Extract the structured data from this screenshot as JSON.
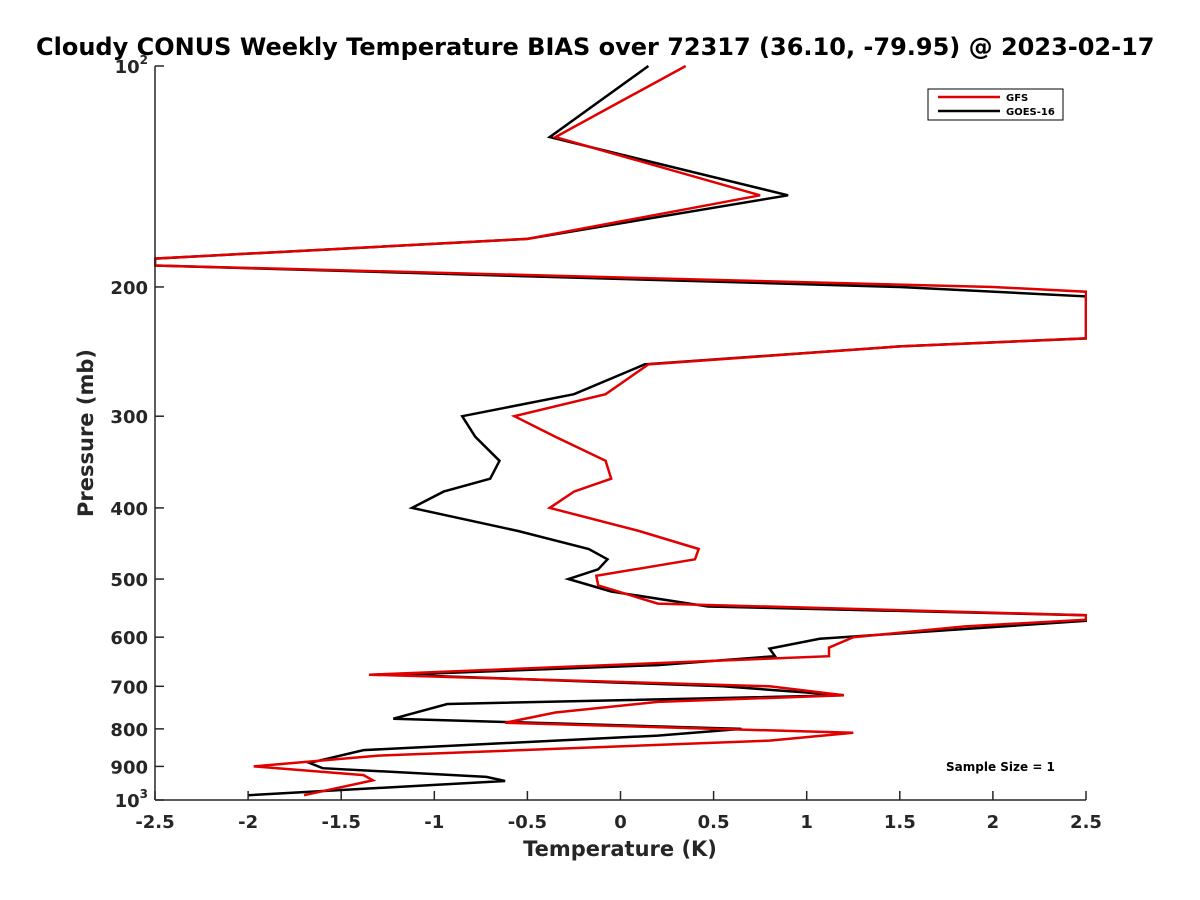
{
  "chart_data": {
    "type": "line",
    "title": "Cloudy CONUS Weekly Temperature BIAS over 72317 (36.10, -79.95) @ 2023-02-17",
    "xlabel": "Temperature (K)",
    "ylabel": "Pressure (mb)",
    "xlim": [
      -2.5,
      2.5
    ],
    "ylim": [
      100,
      1000
    ],
    "y_scale": "log",
    "y_reversed": true,
    "x_ticks": [
      "-2.5",
      "-2",
      "-1.5",
      "-1",
      "-0.5",
      "0",
      "0.5",
      "1",
      "1.5",
      "2",
      "2.5"
    ],
    "y_ticks": [
      {
        "label": "10",
        "sup": "2",
        "value": 100
      },
      {
        "label": "200",
        "sup": "",
        "value": 200
      },
      {
        "label": "300",
        "sup": "",
        "value": 300
      },
      {
        "label": "400",
        "sup": "",
        "value": 400
      },
      {
        "label": "500",
        "sup": "",
        "value": 500
      },
      {
        "label": "600",
        "sup": "",
        "value": 600
      },
      {
        "label": "700",
        "sup": "",
        "value": 700
      },
      {
        "label": "800",
        "sup": "",
        "value": 800
      },
      {
        "label": "900",
        "sup": "",
        "value": 900
      },
      {
        "label": "10",
        "sup": "3",
        "value": 1000
      }
    ],
    "legend_position": "top-right",
    "annotation": "Sample Size = 1",
    "series": [
      {
        "name": "GFS",
        "color": "#e00000",
        "points": [
          [
            0.35,
            100
          ],
          [
            -0.35,
            125
          ],
          [
            0.75,
            150
          ],
          [
            -0.5,
            172
          ],
          [
            -2.5,
            183
          ],
          [
            -2.5,
            187
          ],
          [
            2.0,
            200
          ],
          [
            2.5,
            203
          ],
          [
            2.5,
            235
          ],
          [
            1.5,
            241
          ],
          [
            0.15,
            255
          ],
          [
            -0.08,
            280
          ],
          [
            -0.57,
            300
          ],
          [
            -0.35,
            320
          ],
          [
            -0.08,
            345
          ],
          [
            -0.05,
            365
          ],
          [
            -0.25,
            380
          ],
          [
            -0.38,
            400
          ],
          [
            0.1,
            430
          ],
          [
            0.42,
            455
          ],
          [
            0.4,
            470
          ],
          [
            -0.13,
            495
          ],
          [
            -0.12,
            510
          ],
          [
            0.2,
            540
          ],
          [
            2.5,
            560
          ],
          [
            2.5,
            568
          ],
          [
            1.85,
            580
          ],
          [
            1.25,
            600
          ],
          [
            1.12,
            620
          ],
          [
            1.12,
            637
          ],
          [
            -1.35,
            675
          ],
          [
            0.8,
            700
          ],
          [
            1.2,
            720
          ],
          [
            0.2,
            735
          ],
          [
            -0.35,
            760
          ],
          [
            -0.62,
            785
          ],
          [
            1.25,
            810
          ],
          [
            0.8,
            830
          ],
          [
            -1.3,
            870
          ],
          [
            -1.97,
            900
          ],
          [
            -1.38,
            925
          ],
          [
            -1.33,
            940
          ],
          [
            -1.7,
            985
          ]
        ]
      },
      {
        "name": "GOES-16",
        "color": "#000000",
        "points": [
          [
            0.15,
            100
          ],
          [
            -0.38,
            125
          ],
          [
            0.9,
            150
          ],
          [
            -0.5,
            172
          ],
          [
            -2.5,
            183
          ],
          [
            -2.5,
            187
          ],
          [
            1.5,
            200
          ],
          [
            2.5,
            206
          ],
          [
            2.5,
            235
          ],
          [
            1.5,
            241
          ],
          [
            0.13,
            255
          ],
          [
            -0.25,
            280
          ],
          [
            -0.85,
            300
          ],
          [
            -0.78,
            320
          ],
          [
            -0.65,
            345
          ],
          [
            -0.7,
            365
          ],
          [
            -0.95,
            380
          ],
          [
            -1.12,
            400
          ],
          [
            -0.55,
            430
          ],
          [
            -0.17,
            455
          ],
          [
            -0.07,
            470
          ],
          [
            -0.12,
            485
          ],
          [
            -0.28,
            500
          ],
          [
            -0.05,
            520
          ],
          [
            0.47,
            545
          ],
          [
            2.5,
            560
          ],
          [
            2.5,
            570
          ],
          [
            1.07,
            603
          ],
          [
            0.8,
            622
          ],
          [
            0.83,
            637
          ],
          [
            0.2,
            655
          ],
          [
            -1.2,
            675
          ],
          [
            0.55,
            700
          ],
          [
            1.2,
            720
          ],
          [
            -0.93,
            740
          ],
          [
            -1.22,
            775
          ],
          [
            0.65,
            800
          ],
          [
            0.2,
            817
          ],
          [
            -1.38,
            855
          ],
          [
            -1.67,
            890
          ],
          [
            -1.6,
            905
          ],
          [
            -0.72,
            930
          ],
          [
            -0.62,
            942
          ],
          [
            -2.0,
            985
          ]
        ]
      }
    ]
  }
}
